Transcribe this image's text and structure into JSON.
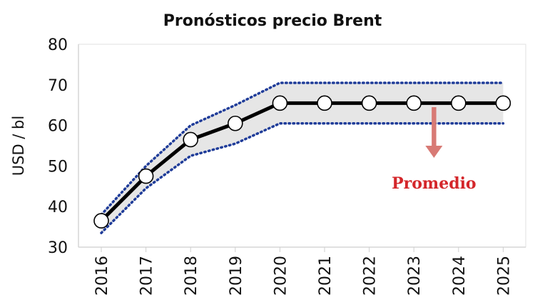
{
  "chart_data": {
    "type": "line",
    "title": "Pronósticos precio Brent",
    "xlabel": "",
    "ylabel": "USD / bl",
    "categories": [
      "2016",
      "2017",
      "2018",
      "2019",
      "2020",
      "2021",
      "2022",
      "2023",
      "2024",
      "2025"
    ],
    "ylim": [
      30,
      80
    ],
    "yticks": [
      30,
      40,
      50,
      60,
      70,
      80
    ],
    "grid": false,
    "series": [
      {
        "name": "",
        "role": "central",
        "values": [
          36.5,
          47.5,
          56.5,
          60.5,
          65.5,
          65.5,
          65.5,
          65.5,
          65.5,
          65.5
        ],
        "color": "#000000"
      },
      {
        "name": "",
        "role": "upper",
        "values": [
          38,
          50,
          60,
          65,
          70.5,
          70.5,
          70.5,
          70.5,
          70.5,
          70.5
        ],
        "color": "#1f3c99"
      },
      {
        "name": "",
        "role": "lower",
        "values": [
          33.5,
          44.5,
          52.5,
          55.5,
          60.5,
          60.5,
          60.5,
          60.5,
          60.5,
          60.5
        ],
        "color": "#1f3c99"
      }
    ],
    "band_fill": "#e6e6e6",
    "annotation": {
      "text": "Promedio",
      "color": "#d4262a",
      "arrow_color": "#d87a75",
      "arrow_from": 64.5,
      "arrow_to": 52,
      "at_x": 7.45
    }
  }
}
